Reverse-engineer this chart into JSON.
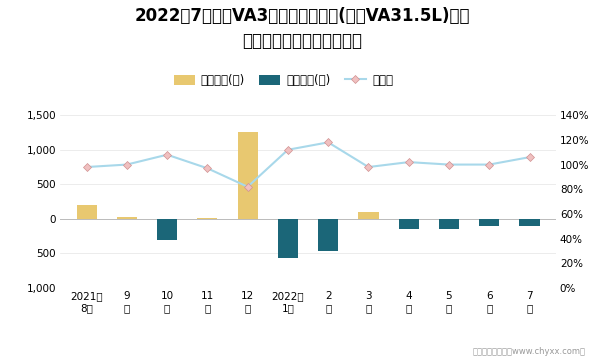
{
  "title_line1": "2022年7月捷达VA3旗下最畅销轿车(捷达VA31.5L)近一",
  "title_line2": "年库存情况及产销率统计图",
  "x_labels_line1": [
    "2021年",
    "9",
    "10",
    "11",
    "12",
    "2022年",
    "2",
    "3",
    "4",
    "5",
    "6",
    "7"
  ],
  "x_labels_line2": [
    "8月",
    "月",
    "月",
    "月",
    "月",
    "1月",
    "月",
    "月",
    "月",
    "月",
    "月",
    "月"
  ],
  "jiaya_inventory": [
    200,
    20,
    0,
    15,
    1250,
    0,
    0,
    100,
    0,
    0,
    0,
    0
  ],
  "qingcang_inventory": [
    0,
    0,
    -300,
    0,
    0,
    -560,
    -460,
    0,
    -150,
    -150,
    -100,
    -100
  ],
  "chansiaolv": [
    0.98,
    1.0,
    1.08,
    0.97,
    0.82,
    1.12,
    1.18,
    0.98,
    1.02,
    1.0,
    1.0,
    1.06
  ],
  "bar_width": 0.5,
  "jiaya_color": "#E8C870",
  "qingcang_color": "#1B6678",
  "line_color": "#A8D8EA",
  "line_marker_facecolor": "#F0C0C0",
  "line_marker_edgecolor": "#D09090",
  "ylim_left": [
    -1000,
    1500
  ],
  "ylim_right": [
    0.0,
    1.4
  ],
  "yticks_left": [
    -1000,
    -500,
    0,
    500,
    1000,
    1500
  ],
  "yticks_right": [
    0.0,
    0.2,
    0.4,
    0.6,
    0.8,
    1.0,
    1.2,
    1.4
  ],
  "legend_labels": [
    "积压库存(辆)",
    "清仓库存(辆)",
    "产销率"
  ],
  "footer": "制图：智研咨询（www.chyxx.com）",
  "bg_color": "#FFFFFF",
  "title_fontsize": 12,
  "tick_fontsize": 7.5,
  "legend_fontsize": 8.5
}
